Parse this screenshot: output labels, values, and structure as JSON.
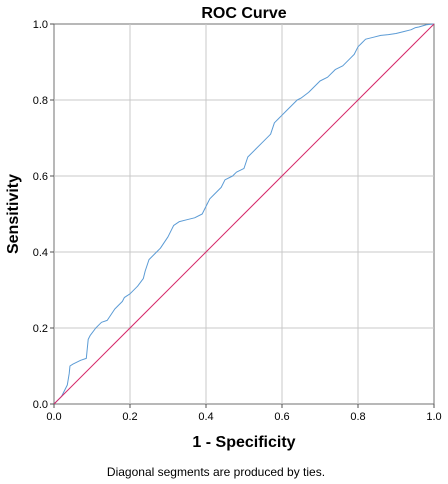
{
  "chart_data": {
    "type": "line",
    "title": "ROC Curve",
    "xlabel": "1 - Specificity",
    "ylabel": "Sensitivity",
    "xlim": [
      0,
      1
    ],
    "ylim": [
      0,
      1
    ],
    "xticks": [
      "0.0",
      "0.2",
      "0.4",
      "0.6",
      "0.8",
      "1.0"
    ],
    "yticks": [
      "0.0",
      "0.2",
      "0.4",
      "0.6",
      "0.8",
      "1.0"
    ],
    "grid": true,
    "footnote": "Diagonal segments are produced by ties.",
    "series": [
      {
        "color": "#5b9bd5",
        "x": [
          0.0,
          0.01,
          0.02,
          0.035,
          0.04,
          0.042,
          0.05,
          0.07,
          0.085,
          0.09,
          0.095,
          0.11,
          0.12,
          0.125,
          0.14,
          0.16,
          0.18,
          0.185,
          0.2,
          0.22,
          0.235,
          0.24,
          0.25,
          0.27,
          0.28,
          0.3,
          0.31,
          0.315,
          0.33,
          0.35,
          0.37,
          0.39,
          0.4,
          0.41,
          0.42,
          0.44,
          0.45,
          0.47,
          0.48,
          0.5,
          0.51,
          0.53,
          0.55,
          0.57,
          0.58,
          0.59,
          0.6,
          0.61,
          0.64,
          0.65,
          0.67,
          0.7,
          0.72,
          0.74,
          0.76,
          0.78,
          0.79,
          0.8,
          0.81,
          0.82,
          0.84,
          0.86,
          0.88,
          0.9,
          0.92,
          0.94,
          0.95,
          0.96,
          0.97,
          0.98,
          1.0
        ],
        "y": [
          0.0,
          0.01,
          0.02,
          0.05,
          0.08,
          0.1,
          0.105,
          0.115,
          0.12,
          0.17,
          0.18,
          0.2,
          0.21,
          0.215,
          0.22,
          0.25,
          0.27,
          0.28,
          0.29,
          0.31,
          0.33,
          0.35,
          0.38,
          0.4,
          0.41,
          0.44,
          0.46,
          0.47,
          0.48,
          0.485,
          0.49,
          0.5,
          0.52,
          0.54,
          0.55,
          0.57,
          0.59,
          0.6,
          0.61,
          0.62,
          0.65,
          0.67,
          0.69,
          0.71,
          0.74,
          0.75,
          0.76,
          0.77,
          0.8,
          0.805,
          0.82,
          0.85,
          0.86,
          0.88,
          0.89,
          0.91,
          0.92,
          0.94,
          0.95,
          0.96,
          0.965,
          0.97,
          0.972,
          0.975,
          0.98,
          0.985,
          0.99,
          0.992,
          0.995,
          0.998,
          1.0
        ]
      },
      {
        "color": "#d6286a",
        "x": [
          0,
          1
        ],
        "y": [
          0,
          1
        ]
      }
    ]
  }
}
